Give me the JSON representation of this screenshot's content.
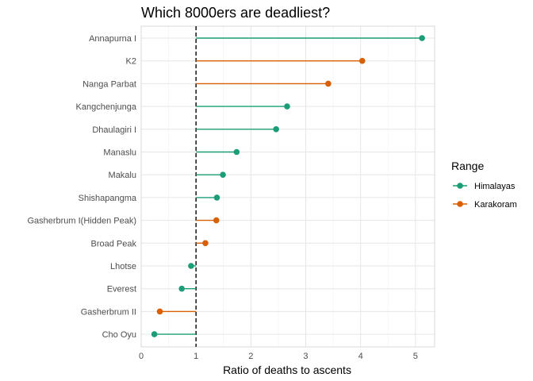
{
  "chart_data": {
    "type": "lollipop",
    "title": "Which 8000ers are deadliest?",
    "xlabel": "Ratio of deaths to ascents",
    "ylabel": "",
    "xlim": [
      0,
      5.35
    ],
    "x_ticks": [
      0,
      1,
      2,
      3,
      4,
      5
    ],
    "baseline": 1,
    "grid": true,
    "legend": {
      "title": "Range",
      "position": "right",
      "entries": [
        {
          "name": "Himalayas",
          "color": "#1b9e77"
        },
        {
          "name": "Karakoram",
          "color": "#d95f02"
        }
      ]
    },
    "points": [
      {
        "peak": "Annapurna I",
        "ratio": 5.12,
        "range": "Himalayas"
      },
      {
        "peak": "K2",
        "ratio": 4.03,
        "range": "Karakoram"
      },
      {
        "peak": "Nanga Parbat",
        "ratio": 3.41,
        "range": "Karakoram"
      },
      {
        "peak": "Kangchenjunga",
        "ratio": 2.66,
        "range": "Himalayas"
      },
      {
        "peak": "Dhaulagiri I",
        "ratio": 2.46,
        "range": "Himalayas"
      },
      {
        "peak": "Manaslu",
        "ratio": 1.74,
        "range": "Himalayas"
      },
      {
        "peak": "Makalu",
        "ratio": 1.49,
        "range": "Himalayas"
      },
      {
        "peak": "Shishapangma",
        "ratio": 1.38,
        "range": "Himalayas"
      },
      {
        "peak": "Gasherbrum I(Hidden Peak)",
        "ratio": 1.37,
        "range": "Karakoram"
      },
      {
        "peak": "Broad Peak",
        "ratio": 1.17,
        "range": "Karakoram"
      },
      {
        "peak": "Lhotse",
        "ratio": 0.91,
        "range": "Himalayas"
      },
      {
        "peak": "Everest",
        "ratio": 0.74,
        "range": "Himalayas"
      },
      {
        "peak": "Gasherbrum II",
        "ratio": 0.34,
        "range": "Karakoram"
      },
      {
        "peak": "Cho Oyu",
        "ratio": 0.24,
        "range": "Himalayas"
      }
    ]
  }
}
